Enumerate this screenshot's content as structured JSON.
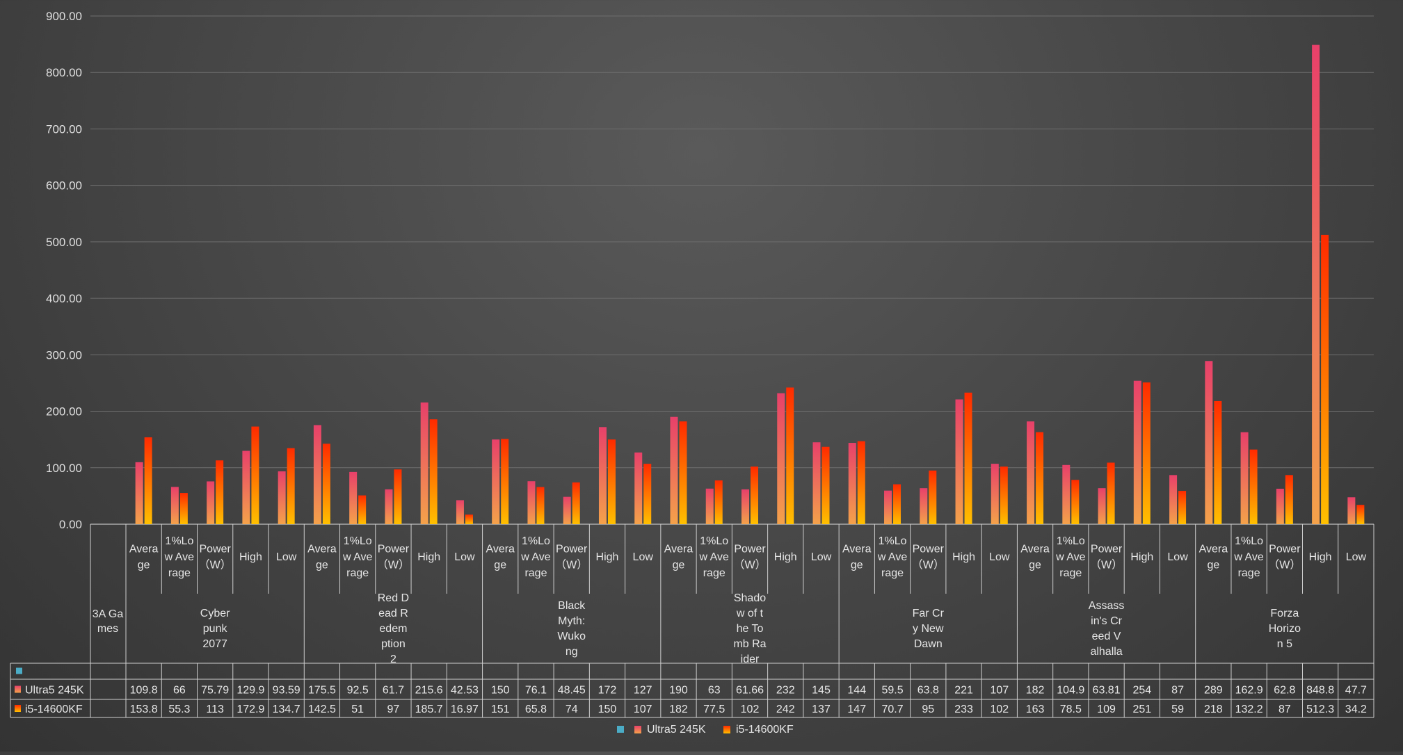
{
  "chart_data": {
    "type": "bar",
    "y_axis": {
      "min": 0,
      "max": 900,
      "step": 100,
      "tick_labels": [
        "0.00",
        "100.00",
        "200.00",
        "300.00",
        "400.00",
        "500.00",
        "600.00",
        "700.00",
        "800.00",
        "900.00"
      ]
    },
    "grid": true,
    "category_header": "3A Games",
    "games": [
      {
        "name_lines": [
          "Cyber",
          "punk",
          "2077"
        ]
      },
      {
        "name_lines": [
          "Red D",
          "ead R",
          "edem",
          "ption",
          "2"
        ]
      },
      {
        "name_lines": [
          "Black",
          "Myth:",
          "Wuko",
          "ng"
        ]
      },
      {
        "name_lines": [
          "Shado",
          "w of t",
          "he To",
          "mb Ra",
          "ider"
        ]
      },
      {
        "name_lines": [
          "Far Cr",
          "y New",
          "Dawn"
        ]
      },
      {
        "name_lines": [
          "Assass",
          "in's Cr",
          "eed V",
          "alhalla"
        ]
      },
      {
        "name_lines": [
          "Forza",
          "Horizo",
          "n 5"
        ]
      }
    ],
    "metrics": [
      {
        "lines": [
          "Avera",
          "ge"
        ]
      },
      {
        "lines": [
          "1%Lo",
          "w Ave",
          "rage"
        ]
      },
      {
        "lines": [
          "Power",
          "（W）"
        ]
      },
      {
        "lines": [
          "High"
        ]
      },
      {
        "lines": [
          "Low"
        ]
      }
    ],
    "series": [
      {
        "name": "",
        "color": "#4bacc6",
        "values": []
      },
      {
        "name": "Ultra5 245K",
        "color_top": "#e8406a",
        "color_bottom": "#f4a24a",
        "labels": [
          "109.8",
          "66",
          "75.79",
          "129.9",
          "93.59",
          "175.5",
          "92.5",
          "61.7",
          "215.6",
          "42.53",
          "150",
          "76.1",
          "48.45",
          "172",
          "127",
          "190",
          "63",
          "61.66",
          "232",
          "145",
          "144",
          "59.5",
          "63.8",
          "221",
          "107",
          "182",
          "104.9",
          "63.81",
          "254",
          "87",
          "289",
          "162.9",
          "62.8",
          "848.8",
          "47.7"
        ],
        "values": [
          109.8,
          66,
          75.79,
          129.9,
          93.59,
          175.5,
          92.5,
          61.7,
          215.6,
          42.53,
          150,
          76.1,
          48.45,
          172,
          127,
          190,
          63,
          61.66,
          232,
          145,
          144,
          59.5,
          63.8,
          221,
          107,
          182,
          104.9,
          63.81,
          254,
          87,
          289,
          162.9,
          62.8,
          848.8,
          47.7
        ]
      },
      {
        "name": "i5-14600KF",
        "color_top": "#ff2a00",
        "color_bottom": "#ffc000",
        "labels": [
          "153.8",
          "55.3",
          "113",
          "172.9",
          "134.7",
          "142.5",
          "51",
          "97",
          "185.7",
          "16.97",
          "151",
          "65.8",
          "74",
          "150",
          "107",
          "182",
          "77.5",
          "102",
          "242",
          "137",
          "147",
          "70.7",
          "95",
          "233",
          "102",
          "163",
          "78.5",
          "109",
          "251",
          "59",
          "218",
          "132.2",
          "87",
          "512.3",
          "34.2"
        ],
        "values": [
          153.8,
          55.3,
          113,
          172.9,
          134.7,
          142.5,
          51,
          97,
          185.7,
          16.97,
          151,
          65.8,
          74,
          150,
          107,
          182,
          77.5,
          102,
          242,
          137,
          147,
          70.7,
          95,
          233,
          102,
          163,
          78.5,
          109,
          251,
          59,
          218,
          132.2,
          87,
          512.3,
          34.2
        ]
      }
    ],
    "legend": {
      "position": "bottom",
      "entries": [
        "",
        "Ultra5 245K",
        "i5-14600KF"
      ]
    }
  }
}
